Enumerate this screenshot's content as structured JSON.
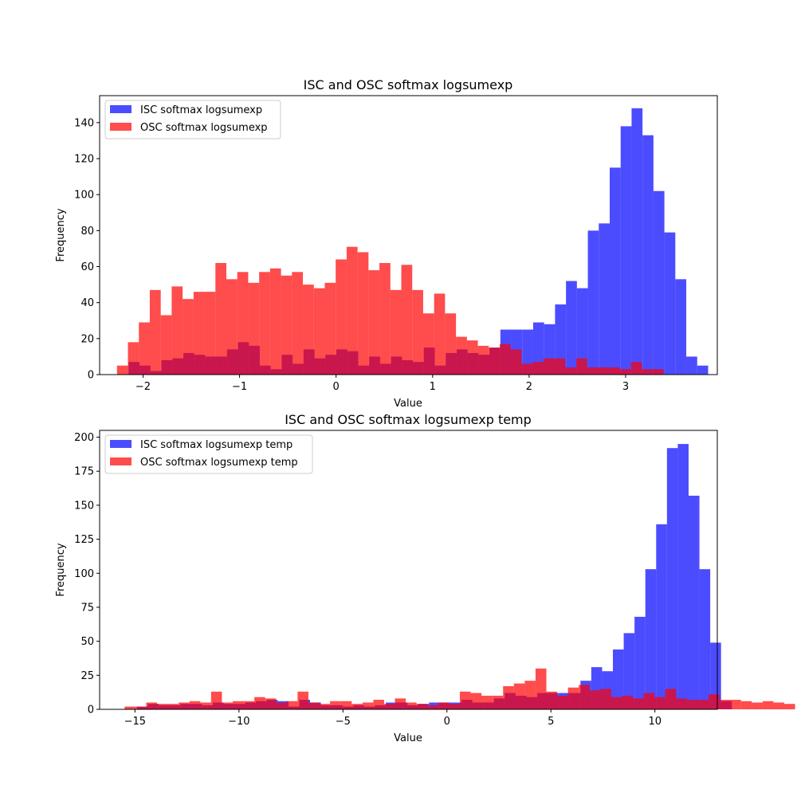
{
  "chart_data": [
    {
      "type": "histogram",
      "title": "ISC and OSC softmax logsumexp",
      "xlabel": "Value",
      "ylabel": "Frequency",
      "xlim": [
        -2.45,
        3.95
      ],
      "ylim": [
        0,
        155
      ],
      "xticks": [
        -2,
        -1,
        0,
        1,
        2,
        3
      ],
      "yticks": [
        0,
        20,
        40,
        60,
        80,
        100,
        120,
        140
      ],
      "legend_position": "top-left",
      "series": [
        {
          "name": "ISC softmax logsumexp",
          "color": "#0000ff",
          "bin_start": -2.15,
          "bin_width": 0.1133,
          "values": [
            7,
            5,
            2,
            8,
            9,
            12,
            11,
            10,
            10,
            14,
            18,
            16,
            5,
            3,
            11,
            6,
            14,
            9,
            11,
            14,
            13,
            5,
            10,
            6,
            10,
            8,
            7,
            15,
            5,
            12,
            14,
            12,
            11,
            15,
            25,
            25,
            25,
            29,
            28,
            39,
            52,
            48,
            80,
            84,
            115,
            138,
            148,
            133,
            102,
            79,
            53,
            10,
            5
          ]
        },
        {
          "name": "OSC softmax logsumexp",
          "color": "#ff0000",
          "bin_start": -2.27,
          "bin_width": 0.1133,
          "values": [
            5,
            18,
            29,
            47,
            33,
            49,
            42,
            46,
            46,
            62,
            53,
            57,
            51,
            57,
            59,
            55,
            57,
            50,
            48,
            51,
            64,
            71,
            68,
            58,
            62,
            47,
            61,
            47,
            34,
            45,
            34,
            21,
            19,
            16,
            15,
            17,
            14,
            6,
            7,
            9,
            9,
            4,
            9,
            4,
            4,
            4,
            3,
            7,
            3,
            3
          ]
        }
      ]
    },
    {
      "type": "histogram",
      "title": "ISC and OSC softmax logsumexp temp",
      "xlabel": "Value",
      "ylabel": "Frequency",
      "xlim": [
        -16.7,
        13.0
      ],
      "ylim": [
        0,
        205
      ],
      "xticks": [
        -15,
        -10,
        -5,
        0,
        5,
        10
      ],
      "yticks": [
        0,
        25,
        50,
        75,
        100,
        125,
        150,
        175,
        200
      ],
      "legend_position": "top-left",
      "series": [
        {
          "name": "ISC softmax logsumexp temp",
          "color": "#0000ff",
          "bin_start": -14.9,
          "bin_width": 0.52,
          "values": [
            2,
            4,
            3,
            3,
            4,
            4,
            3,
            5,
            4,
            4,
            5,
            6,
            7,
            6,
            2,
            7,
            5,
            3,
            3,
            2,
            3,
            2,
            3,
            5,
            5,
            3,
            4,
            5,
            5,
            5,
            7,
            5,
            5,
            8,
            12,
            10,
            9,
            12,
            12,
            12,
            12,
            21,
            31,
            28,
            44,
            56,
            68,
            103,
            136,
            192,
            195,
            157,
            103,
            49,
            6
          ]
        },
        {
          "name": "OSC softmax logsumexp temp",
          "color": "#ff0000",
          "bin_start": -15.5,
          "bin_width": 0.52,
          "values": [
            2,
            2,
            5,
            4,
            4,
            5,
            6,
            5,
            13,
            5,
            6,
            6,
            9,
            8,
            5,
            6,
            13,
            5,
            4,
            6,
            6,
            4,
            5,
            7,
            4,
            8,
            5,
            4,
            3,
            5,
            4,
            13,
            12,
            10,
            10,
            17,
            19,
            21,
            30,
            13,
            10,
            16,
            18,
            14,
            15,
            9,
            10,
            8,
            12,
            9,
            15,
            8,
            7,
            7,
            11,
            7,
            7,
            6,
            5,
            6,
            5,
            4
          ]
        }
      ]
    }
  ]
}
